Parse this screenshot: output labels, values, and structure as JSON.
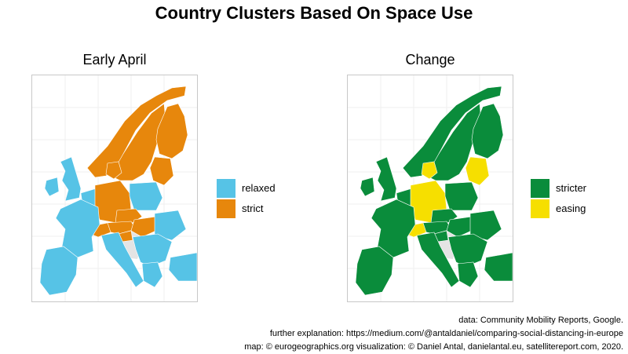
{
  "title": "Country Clusters Based On Space Use",
  "panels": [
    {
      "title": "Early April",
      "legend": [
        {
          "label": "relaxed",
          "color": "#56c3e6"
        },
        {
          "label": "strict",
          "color": "#e7870c"
        }
      ],
      "regions": {
        "iberia": "relaxed",
        "france": "relaxed",
        "italy": "relaxed",
        "uk": "relaxed",
        "ireland": "relaxed",
        "benelux": "relaxed",
        "poland": "relaxed",
        "balkans": "relaxed",
        "greece": "relaxed",
        "turkey": "relaxed",
        "romania": "relaxed",
        "norway": "strict",
        "sweden": "strict",
        "finland": "strict",
        "baltics": "strict",
        "denmark": "strict",
        "germany": "strict",
        "czechia": "strict",
        "austria": "strict",
        "switzerland": "strict",
        "hungary": "strict",
        "slovenia": "strict"
      }
    },
    {
      "title": "Change",
      "legend": [
        {
          "label": "stricter",
          "color": "#0a8c3b"
        },
        {
          "label": "easing",
          "color": "#f6df00"
        }
      ],
      "regions": {
        "iberia": "stricter",
        "france": "stricter",
        "italy": "stricter",
        "uk": "stricter",
        "ireland": "stricter",
        "benelux": "stricter",
        "poland": "stricter",
        "balkans": "stricter",
        "greece": "stricter",
        "turkey": "stricter",
        "romania": "stricter",
        "norway": "stricter",
        "sweden": "stricter",
        "finland": "stricter",
        "baltics": "easing",
        "denmark": "easing",
        "germany": "easing",
        "czechia": "stricter",
        "austria": "stricter",
        "switzerland": "easing",
        "hungary": "stricter",
        "slovenia": "stricter"
      }
    }
  ],
  "credits": [
    "data: Community Mobility Reports, Google.",
    "further explanation: https://medium.com/@antaldaniel/comparing-social-distancing-in-europe",
    "map: © eurogeographics.org visualization: © Daniel Antal, danielantal.eu, satellitereport.com, 2020."
  ]
}
